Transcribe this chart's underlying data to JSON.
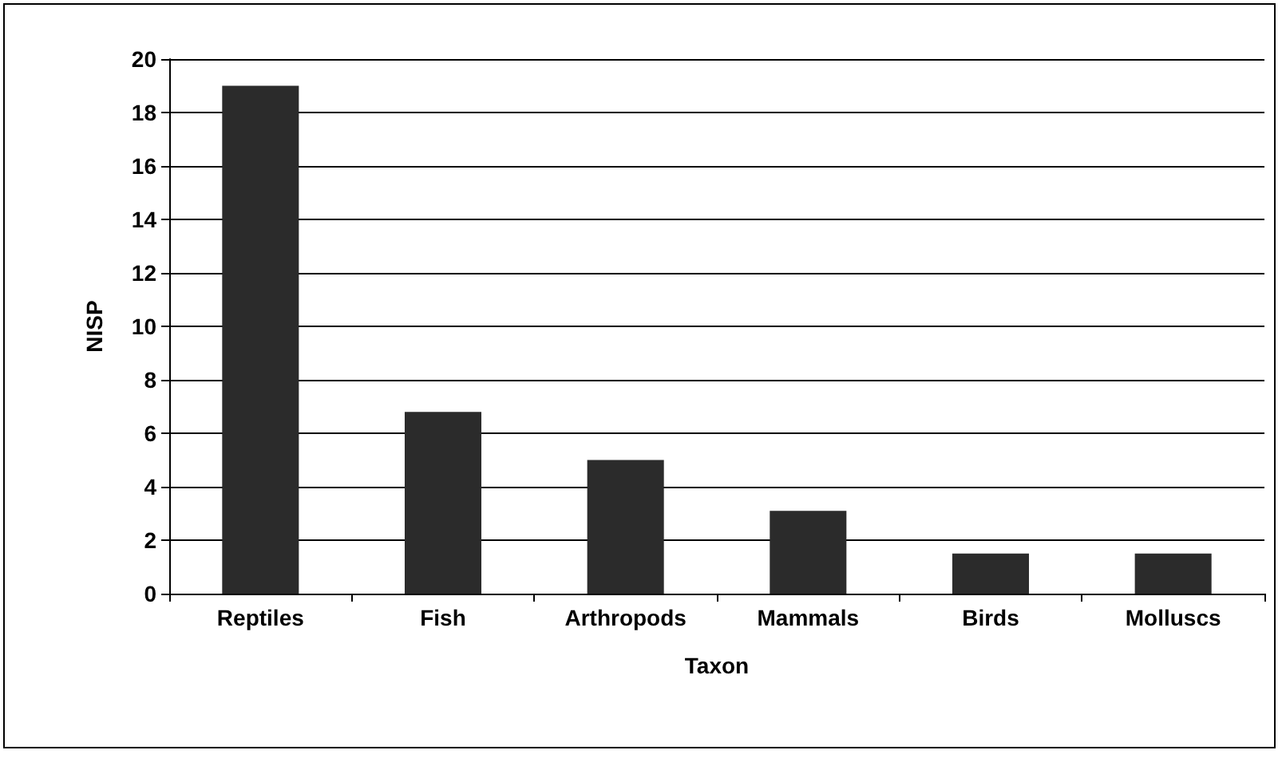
{
  "chart_data": {
    "type": "bar",
    "xlabel": "Taxon",
    "ylabel": "NISP",
    "categories": [
      "Reptiles",
      "Fish",
      "Arthropods",
      "Mammals",
      "Birds",
      "Molluscs"
    ],
    "values": [
      19,
      6.8,
      5,
      3.1,
      1.5,
      1.5
    ],
    "color": "#2b2b2b",
    "ylim": [
      0,
      20
    ],
    "yticks": [
      0,
      2,
      4,
      6,
      8,
      10,
      12,
      14,
      16,
      18,
      20
    ],
    "grid": "y"
  }
}
